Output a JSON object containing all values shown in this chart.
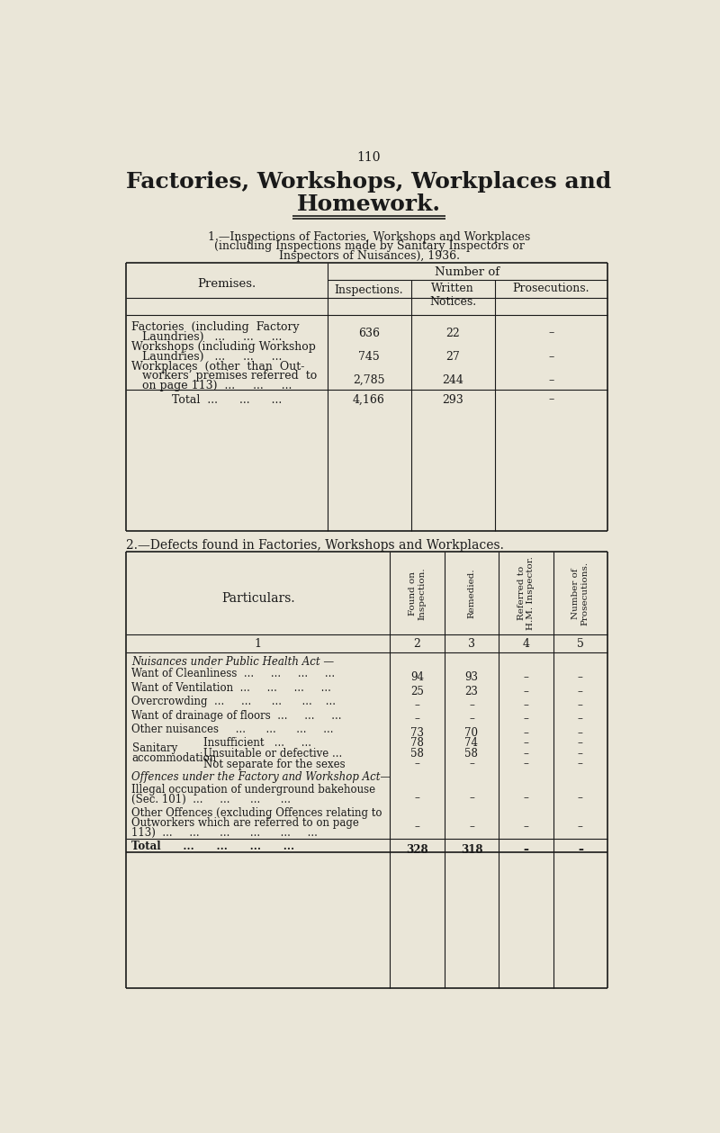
{
  "page_number": "110",
  "bg_color": "#eae6d8",
  "text_color": "#1a1a1a",
  "main_title_line1": "Factories, Workshops, Workplaces and",
  "main_title_line2": "Homework.",
  "section1_label": "1.",
  "section1_heading_sc": "—Inspections of Factories, Workshops and Workplaces",
  "section1_line2": "(including Inspections made by Sanitary Inspectors or",
  "section1_line3": "Inspectors of Nuisances), 1936.",
  "section2_label": "2.",
  "section2_heading": "—Defects found in Factories, Workshops and Workplaces.",
  "t1_premises_header": "Premises.",
  "t1_numof_header": "Number of",
  "t1_col_headers": [
    "Inspections.",
    "Written\nNotices.",
    "Prosecutions."
  ],
  "t1_rows": [
    {
      "label": "Factories  (including  Factory\nLaundries)   ...     ...     ...",
      "vals": [
        "636",
        "22",
        "–"
      ]
    },
    {
      "label": "Workshops (including Workshop\nLaundries)   ...     ...     ...",
      "vals": [
        "745",
        "27",
        "–"
      ]
    },
    {
      "label": "Workplaces  (other  than  Out-\nworkers’ premises referred  to\non page 113)  ...     ...     ...",
      "vals": [
        "2,785",
        "244",
        "–"
      ]
    },
    {
      "label": "Total  ...      ...      ...",
      "vals": [
        "4,166",
        "293",
        "–"
      ],
      "total": true
    }
  ],
  "t2_particulars_header": "Particulars.",
  "t2_col_headers": [
    {
      "label": "Found on\nInspection.",
      "num": "2"
    },
    {
      "label": "Remedied.",
      "num": "3"
    },
    {
      "label": "Referred to\nH.M. Inspector.",
      "num": "4"
    },
    {
      "label": "Number of\nProsecutions.",
      "num": "5"
    }
  ],
  "t2_rows": [
    {
      "label": "Nuisances under Public Health Act —",
      "vals": [
        "",
        "",
        "",
        ""
      ],
      "italic": true,
      "section_head": true
    },
    {
      "label": "Want of Cleanliness  ...     ...     ...     ...",
      "vals": [
        "94",
        "93",
        "–",
        "–"
      ]
    },
    {
      "label": "Want of Ventilation  ...     ...     ...     ...",
      "vals": [
        "25",
        "23",
        "–",
        "–"
      ]
    },
    {
      "label": "Overcrowding  ...     ...      ...      ...    ...",
      "vals": [
        "–",
        "–",
        "–",
        "–"
      ]
    },
    {
      "label": "Want of drainage of floors  ...     ...     ...",
      "vals": [
        "–",
        "–",
        "–",
        "–"
      ]
    },
    {
      "label": "Other nuisances     ...      ...      ...     ...",
      "vals": [
        "73",
        "70",
        "–",
        "–"
      ]
    },
    {
      "label": "Sanitary\naccommodation",
      "sub_labels": [
        "Insufficient   ...     ...",
        "Unsuitable or defective ...",
        "Not separate for the sexes"
      ],
      "vals_list": [
        [
          "78",
          "74",
          "–",
          "–"
        ],
        [
          "58",
          "58",
          "–",
          "–"
        ],
        [
          "–",
          "–",
          "–",
          "–"
        ]
      ],
      "bracket": true
    },
    {
      "label": "Offences under the Factory and Workshop Act—",
      "vals": [
        "",
        "",
        "",
        ""
      ],
      "italic": true,
      "section_head": true
    },
    {
      "label": "Illegal occupation of underground bakehouse\n(Sec. 101)  ...     ...      ...      ...",
      "vals": [
        "–",
        "–",
        "–",
        "–"
      ]
    },
    {
      "label": "Other Offences (excluding Offences relating to\nOutworkers which are referred to on page\n113)  ...     ...      ...      ...      ...     ...",
      "vals": [
        "–",
        "–",
        "–",
        "–"
      ]
    },
    {
      "label": "Total      ...      ...      ...      ...",
      "vals": [
        "328",
        "318",
        "–",
        "–"
      ],
      "total": true
    }
  ]
}
